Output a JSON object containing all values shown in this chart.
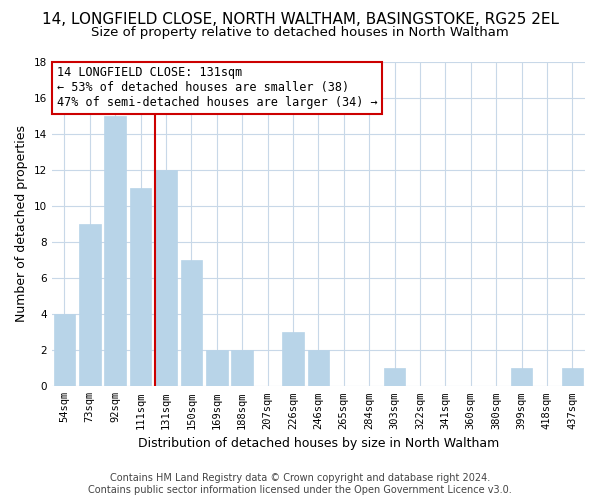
{
  "title": "14, LONGFIELD CLOSE, NORTH WALTHAM, BASINGSTOKE, RG25 2EL",
  "subtitle": "Size of property relative to detached houses in North Waltham",
  "xlabel": "Distribution of detached houses by size in North Waltham",
  "ylabel": "Number of detached properties",
  "bins": [
    "54sqm",
    "73sqm",
    "92sqm",
    "111sqm",
    "131sqm",
    "150sqm",
    "169sqm",
    "188sqm",
    "207sqm",
    "226sqm",
    "246sqm",
    "265sqm",
    "284sqm",
    "303sqm",
    "322sqm",
    "341sqm",
    "360sqm",
    "380sqm",
    "399sqm",
    "418sqm",
    "437sqm"
  ],
  "values": [
    4,
    9,
    15,
    11,
    12,
    7,
    2,
    2,
    0,
    3,
    2,
    0,
    0,
    1,
    0,
    0,
    0,
    0,
    1,
    0,
    1
  ],
  "bar_color": "#b8d4e8",
  "bar_edge_color": "#b8d4e8",
  "highlight_line_color": "#cc0000",
  "annotation_line1": "14 LONGFIELD CLOSE: 131sqm",
  "annotation_line2": "← 53% of detached houses are smaller (38)",
  "annotation_line3": "47% of semi-detached houses are larger (34) →",
  "annotation_box_color": "#ffffff",
  "annotation_box_edge": "#cc0000",
  "ylim": [
    0,
    18
  ],
  "yticks": [
    0,
    2,
    4,
    6,
    8,
    10,
    12,
    14,
    16,
    18
  ],
  "footer_line1": "Contains HM Land Registry data © Crown copyright and database right 2024.",
  "footer_line2": "Contains public sector information licensed under the Open Government Licence v3.0.",
  "bg_color": "#ffffff",
  "grid_color": "#c8d8e8",
  "title_fontsize": 11,
  "subtitle_fontsize": 9.5,
  "axis_label_fontsize": 9,
  "tick_fontsize": 7.5,
  "annotation_fontsize": 8.5,
  "footer_fontsize": 7
}
